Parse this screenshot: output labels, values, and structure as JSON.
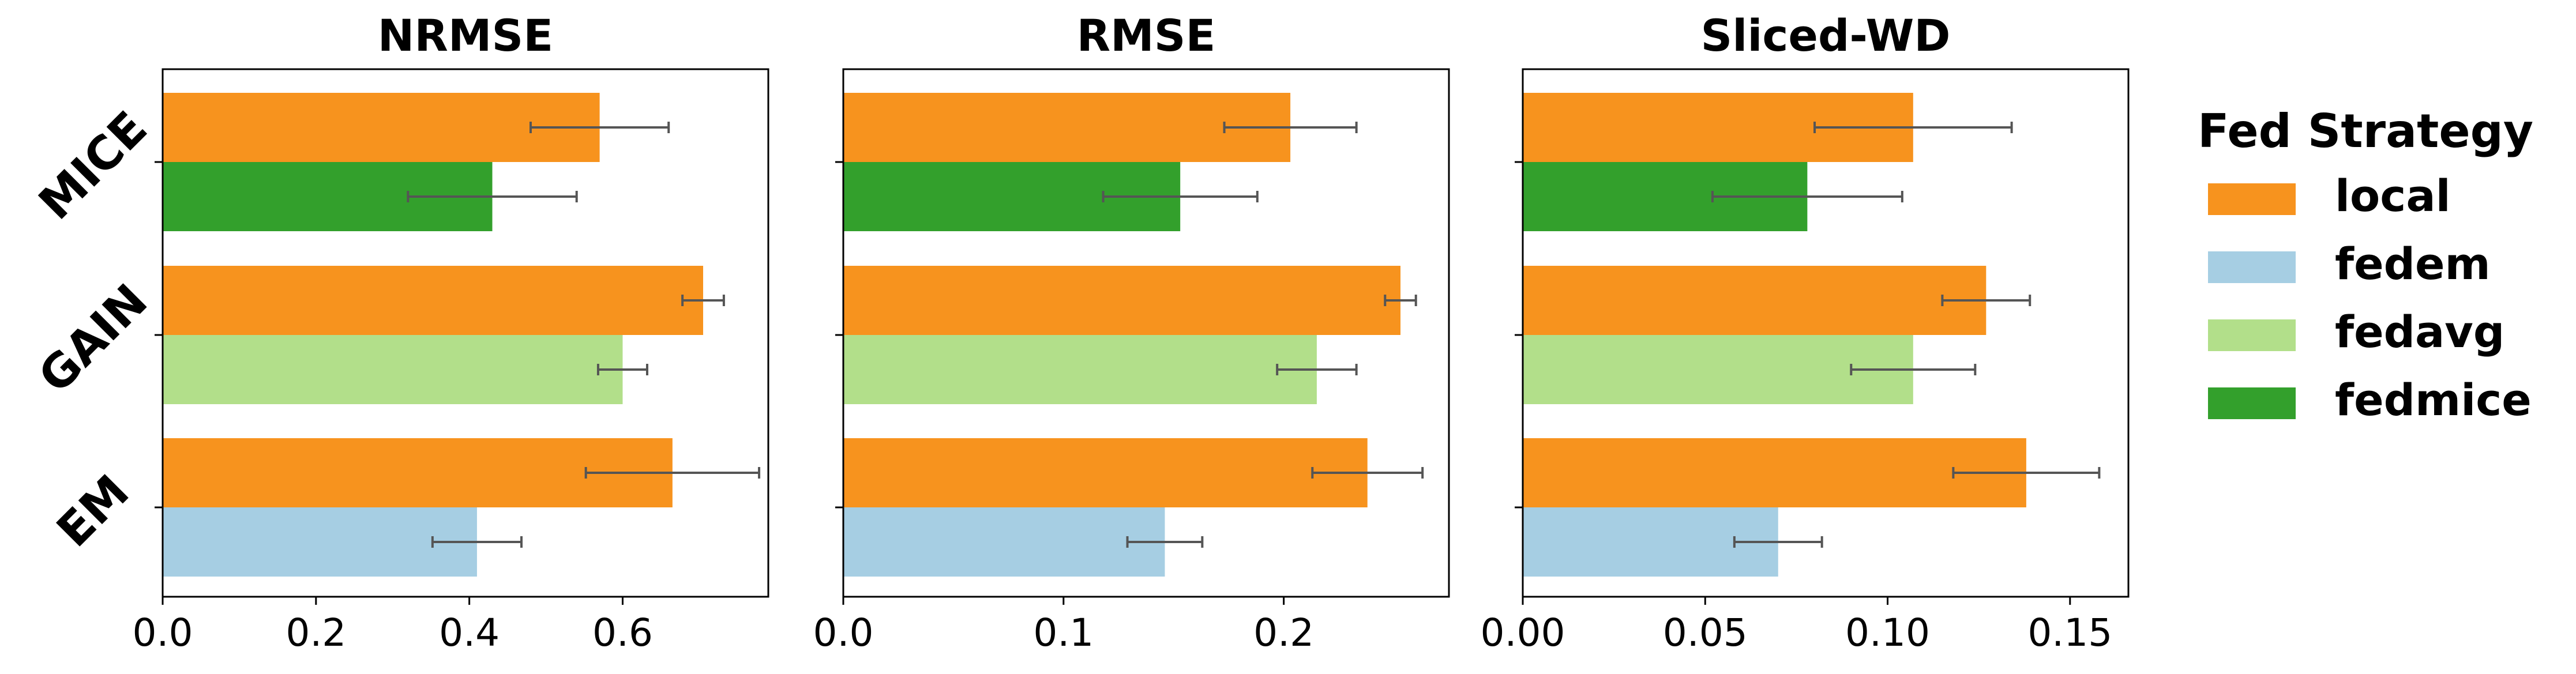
{
  "chart_data": {
    "type": "bar",
    "orientation": "horizontal",
    "categories": [
      "MICE",
      "GAIN",
      "EM"
    ],
    "legend": {
      "title": "Fed Strategy",
      "placement": "right",
      "entries": [
        {
          "name": "local",
          "color": "#F7931E"
        },
        {
          "name": "fedem",
          "color": "#A6CEE3"
        },
        {
          "name": "fedavg",
          "color": "#B2DF8A"
        },
        {
          "name": "fedmice",
          "color": "#33A02C"
        }
      ]
    },
    "panels": [
      {
        "title": "NRMSE",
        "xlim": [
          0,
          0.79
        ],
        "xticks": [
          "0.0",
          "0.2",
          "0.4",
          "0.6"
        ],
        "xtick_values": [
          0,
          0.2,
          0.4,
          0.6
        ],
        "groups": [
          {
            "category": "MICE",
            "bars": [
              {
                "strategy": "local",
                "value": 0.57,
                "err": 0.09
              },
              {
                "strategy": "fedmice",
                "value": 0.43,
                "err": 0.11
              }
            ]
          },
          {
            "category": "GAIN",
            "bars": [
              {
                "strategy": "local",
                "value": 0.705,
                "err": 0.027
              },
              {
                "strategy": "fedavg",
                "value": 0.6,
                "err": 0.032
              }
            ]
          },
          {
            "category": "EM",
            "bars": [
              {
                "strategy": "local",
                "value": 0.665,
                "err": 0.113
              },
              {
                "strategy": "fedem",
                "value": 0.41,
                "err": 0.058
              }
            ]
          }
        ]
      },
      {
        "title": "RMSE",
        "xlim": [
          0,
          0.275
        ],
        "xticks": [
          "0.0",
          "0.1",
          "0.2"
        ],
        "xtick_values": [
          0,
          0.1,
          0.2
        ],
        "groups": [
          {
            "category": "MICE",
            "bars": [
              {
                "strategy": "local",
                "value": 0.203,
                "err": 0.03
              },
              {
                "strategy": "fedmice",
                "value": 0.153,
                "err": 0.035
              }
            ]
          },
          {
            "category": "GAIN",
            "bars": [
              {
                "strategy": "local",
                "value": 0.253,
                "err": 0.007
              },
              {
                "strategy": "fedavg",
                "value": 0.215,
                "err": 0.018
              }
            ]
          },
          {
            "category": "EM",
            "bars": [
              {
                "strategy": "local",
                "value": 0.238,
                "err": 0.025
              },
              {
                "strategy": "fedem",
                "value": 0.146,
                "err": 0.017
              }
            ]
          }
        ]
      },
      {
        "title": "Sliced-WD",
        "xlim": [
          0,
          0.166
        ],
        "xticks": [
          "0.00",
          "0.05",
          "0.10",
          "0.15"
        ],
        "xtick_values": [
          0,
          0.05,
          0.1,
          0.15
        ],
        "groups": [
          {
            "category": "MICE",
            "bars": [
              {
                "strategy": "local",
                "value": 0.107,
                "err": 0.027
              },
              {
                "strategy": "fedmice",
                "value": 0.078,
                "err": 0.026
              }
            ]
          },
          {
            "category": "GAIN",
            "bars": [
              {
                "strategy": "local",
                "value": 0.127,
                "err": 0.012
              },
              {
                "strategy": "fedavg",
                "value": 0.107,
                "err": 0.017
              }
            ]
          },
          {
            "category": "EM",
            "bars": [
              {
                "strategy": "local",
                "value": 0.138,
                "err": 0.02
              },
              {
                "strategy": "fedem",
                "value": 0.07,
                "err": 0.012
              }
            ]
          }
        ]
      }
    ]
  }
}
